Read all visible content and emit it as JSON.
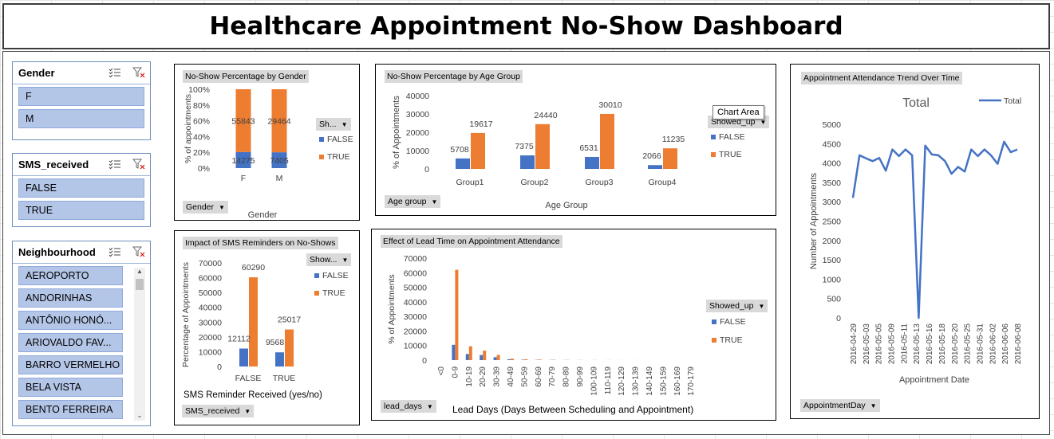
{
  "dashboard": {
    "title": "Healthcare Appointment No-Show Dashboard"
  },
  "colors": {
    "false": "#4472c4",
    "true": "#ed7d31",
    "slicer_item": "#b4c6e7"
  },
  "slicers": {
    "gender": {
      "title": "Gender",
      "items": [
        "F",
        "M"
      ]
    },
    "sms": {
      "title": "SMS_received",
      "items": [
        "FALSE",
        "TRUE"
      ]
    },
    "neighbourhood": {
      "title": "Neighbourhood",
      "items": [
        "AEROPORTO",
        "ANDORINHAS",
        "ANTÔNIO HONÓ...",
        "ARIOVALDO FAV...",
        "BARRO VERMELHO",
        "BELA VISTA",
        "BENTO FERREIRA"
      ]
    }
  },
  "tooltip": "Chart Area",
  "chart_data": [
    {
      "id": "gender",
      "type": "bar",
      "stacked": "percent",
      "title": "No-Show Percentage by Gender",
      "categories": [
        "F",
        "M"
      ],
      "series": [
        {
          "name": "FALSE",
          "values": [
            14275,
            7405
          ]
        },
        {
          "name": "TRUE",
          "values": [
            55843,
            29464
          ]
        }
      ],
      "ylabel": "% of appointments",
      "xlabel": "Gender",
      "y_ticks": [
        "0%",
        "20%",
        "40%",
        "60%",
        "80%",
        "100%"
      ],
      "legend_field": "Sh...",
      "axis_field": "Gender",
      "legend": "right"
    },
    {
      "id": "age",
      "type": "bar",
      "title": "No-Show Percentage by Age Group",
      "categories": [
        "Group1",
        "Group2",
        "Group3",
        "Group4"
      ],
      "series": [
        {
          "name": "FALSE",
          "values": [
            5708,
            7375,
            6531,
            2066
          ]
        },
        {
          "name": "TRUE",
          "values": [
            19617,
            24440,
            30010,
            11235
          ]
        }
      ],
      "ylabel": "% of Appointments",
      "xlabel": "Age Group",
      "ylim": [
        0,
        40000
      ],
      "y_ticks": [
        "0",
        "10000",
        "20000",
        "30000",
        "40000"
      ],
      "legend_field": "Showed_up",
      "axis_field": "Age group",
      "legend": "right"
    },
    {
      "id": "sms",
      "type": "bar",
      "title": "Impact of SMS Reminders on No-Shows",
      "categories": [
        "FALSE",
        "TRUE"
      ],
      "series": [
        {
          "name": "FALSE",
          "values": [
            12112,
            9568
          ]
        },
        {
          "name": "TRUE",
          "values": [
            60290,
            25017
          ]
        }
      ],
      "ylabel": "Percentage of Appointments",
      "xlabel": "SMS Reminder Received  (yes/no)",
      "ylim": [
        0,
        70000
      ],
      "y_ticks": [
        "0",
        "10000",
        "20000",
        "30000",
        "40000",
        "50000",
        "60000",
        "70000"
      ],
      "legend_field": "Show...",
      "axis_field": "SMS_received",
      "legend": "right"
    },
    {
      "id": "lead",
      "type": "bar",
      "title": "Effect of Lead Time  on Appointment Attendance",
      "categories": [
        "<0",
        "0-9",
        "10-19",
        "20-29",
        "30-39",
        "40-49",
        "50-59",
        "60-69",
        "70-79",
        "80-89",
        "90-99",
        "100-109",
        "110-119",
        "120-129",
        "130-139",
        "140-149",
        "150-159",
        "160-169",
        "170-179"
      ],
      "series": [
        {
          "name": "FALSE",
          "values": [
            5,
            10500,
            4200,
            3500,
            2000,
            600,
            300,
            200,
            120,
            80,
            50,
            40,
            30,
            20,
            15,
            10,
            8,
            6,
            4
          ]
        },
        {
          "name": "TRUE",
          "values": [
            0,
            62000,
            9500,
            6500,
            3600,
            1000,
            600,
            400,
            250,
            150,
            100,
            80,
            60,
            40,
            30,
            25,
            20,
            12,
            8
          ]
        }
      ],
      "ylabel": "% of Appointments",
      "xlabel": "Lead Days (Days Between Scheduling and Appointment)",
      "ylim": [
        0,
        70000
      ],
      "y_ticks": [
        "0",
        "10000",
        "20000",
        "30000",
        "40000",
        "50000",
        "60000",
        "70000"
      ],
      "legend_field": "Showed_up",
      "axis_field": "lead_days",
      "legend": "right"
    },
    {
      "id": "trend",
      "type": "line",
      "title": "Total",
      "panel_title": "Appointment Attendance Trend Over Time",
      "x_ticks": [
        "2016-04-29",
        "2016-05-03",
        "2016-05-05",
        "2016-05-09",
        "2016-05-11",
        "2016-05-13",
        "2016-05-16",
        "2016-05-18",
        "2016-05-20",
        "2016-05-25",
        "2016-05-31",
        "2016-06-02",
        "2016-06-06",
        "2016-06-08"
      ],
      "series": [
        {
          "name": "Total",
          "values": [
            3100,
            4200,
            4120,
            4050,
            4130,
            3800,
            4350,
            4180,
            4350,
            4200,
            0,
            4450,
            4220,
            4200,
            4050,
            3720,
            3900,
            3780,
            4350,
            4180,
            4350,
            4200,
            3980,
            4550,
            4280,
            4350
          ]
        }
      ],
      "ylabel": "Number of Appointments",
      "xlabel": "Appointment Date",
      "ylim": [
        0,
        5000
      ],
      "y_ticks": [
        "0",
        "500",
        "1000",
        "1500",
        "2000",
        "2500",
        "3000",
        "3500",
        "4000",
        "4500",
        "5000"
      ],
      "axis_field": "AppointmentDay",
      "legend": "top-right"
    }
  ]
}
